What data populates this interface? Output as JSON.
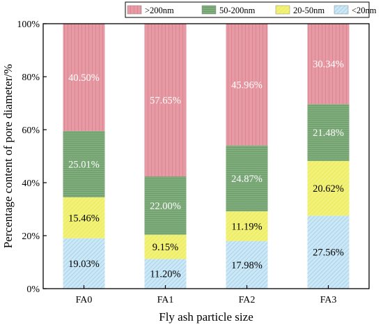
{
  "chart_data": {
    "type": "bar",
    "stacked": true,
    "categories": [
      "FA0",
      "FA1",
      "FA2",
      "FA3"
    ],
    "series": [
      {
        "name": "<20nm",
        "values": [
          19.03,
          11.2,
          17.98,
          27.56
        ],
        "labels": [
          "19.03%",
          "11.20%",
          "17.98%",
          "27.56%"
        ],
        "color": "#cce8f5",
        "hatch": "#a9d3ee",
        "label_color": "#000000"
      },
      {
        "name": "20-50nm",
        "values": [
          15.46,
          9.15,
          11.19,
          20.62
        ],
        "labels": [
          "15.46%",
          "9.15%",
          "11.19%",
          "20.62%"
        ],
        "color": "#f2f27a",
        "hatch": "#e9e95a",
        "label_color": "#000000"
      },
      {
        "name": "50-200nm",
        "values": [
          25.01,
          22.0,
          24.87,
          21.48
        ],
        "labels": [
          "25.01%",
          "22.00%",
          "24.87%",
          "21.48%"
        ],
        "color": "#7fad7c",
        "hatch": "#6b9a68",
        "label_color": "#ffffff"
      },
      {
        "name": ">200nm",
        "values": [
          40.5,
          57.65,
          45.96,
          30.34
        ],
        "labels": [
          "40.50%",
          "57.65%",
          "45.96%",
          "30.34%"
        ],
        "color": "#e89aa4",
        "hatch": "#d98792",
        "label_color": "#ffffff"
      }
    ],
    "legend_order": [
      ">200nm",
      "50-200nm",
      "20-50nm",
      "<20nm"
    ],
    "legend_position": "top",
    "xlabel": "Fly ash particle size",
    "ylabel": "Percentage content of pore diameter/%",
    "ylim": [
      0,
      100
    ],
    "yticks": [
      0,
      20,
      40,
      60,
      80,
      100
    ],
    "ytick_labels": [
      "0%",
      "20%",
      "40%",
      "60%",
      "80%",
      "100%"
    ],
    "grid": false
  }
}
